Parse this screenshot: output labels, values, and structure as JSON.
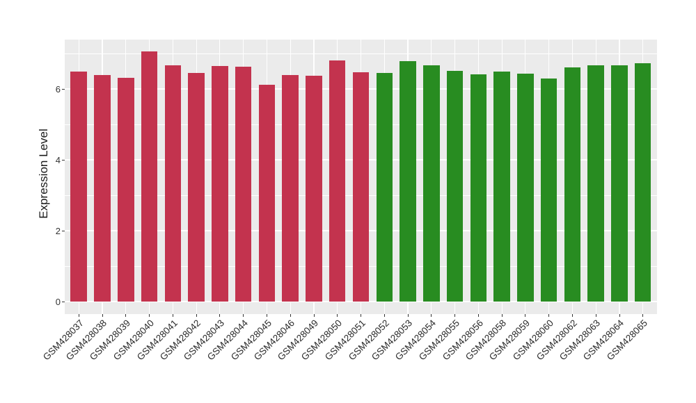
{
  "chart_data": {
    "type": "bar",
    "title": "",
    "ylabel": "Expression Level",
    "xlabel": "",
    "categories": [
      "GSM428037",
      "GSM428038",
      "GSM428039",
      "GSM428040",
      "GSM428041",
      "GSM428042",
      "GSM428043",
      "GSM428044",
      "GSM428045",
      "GSM428046",
      "GSM428049",
      "GSM428050",
      "GSM428051",
      "GSM428052",
      "GSM428053",
      "GSM428054",
      "GSM428055",
      "GSM428056",
      "GSM428058",
      "GSM428059",
      "GSM428060",
      "GSM428062",
      "GSM428063",
      "GSM428064",
      "GSM428065"
    ],
    "values": [
      6.5,
      6.4,
      6.32,
      7.05,
      6.67,
      6.46,
      6.65,
      6.63,
      6.11,
      6.39,
      6.37,
      6.81,
      6.47,
      6.46,
      6.78,
      6.66,
      6.51,
      6.41,
      6.5,
      6.43,
      6.3,
      6.6,
      6.67,
      6.67,
      6.73
    ],
    "bar_colors": [
      "#C3334E",
      "#C3334E",
      "#C3334E",
      "#C3334E",
      "#C3334E",
      "#C3334E",
      "#C3334E",
      "#C3334E",
      "#C3334E",
      "#C3334E",
      "#C3334E",
      "#C3334E",
      "#C3334E",
      "#288C21",
      "#288C21",
      "#288C21",
      "#288C21",
      "#288C21",
      "#288C21",
      "#288C21",
      "#288C21",
      "#288C21",
      "#288C21",
      "#288C21",
      "#288C21"
    ],
    "group_palette": {
      "red": "#C3334E",
      "green": "#288C21"
    },
    "yticks": [
      "0",
      "2",
      "4",
      "6"
    ],
    "ytick_values": [
      0,
      2,
      4,
      6
    ],
    "minor_ytick_values": [
      1,
      3,
      5,
      7
    ],
    "ylim": [
      -0.35,
      7.39
    ],
    "legend": "none",
    "grid": "on",
    "panel_background": "#EBEBEB",
    "gridline_color": "#FFFFFF",
    "axis_text_color": "#333333"
  }
}
